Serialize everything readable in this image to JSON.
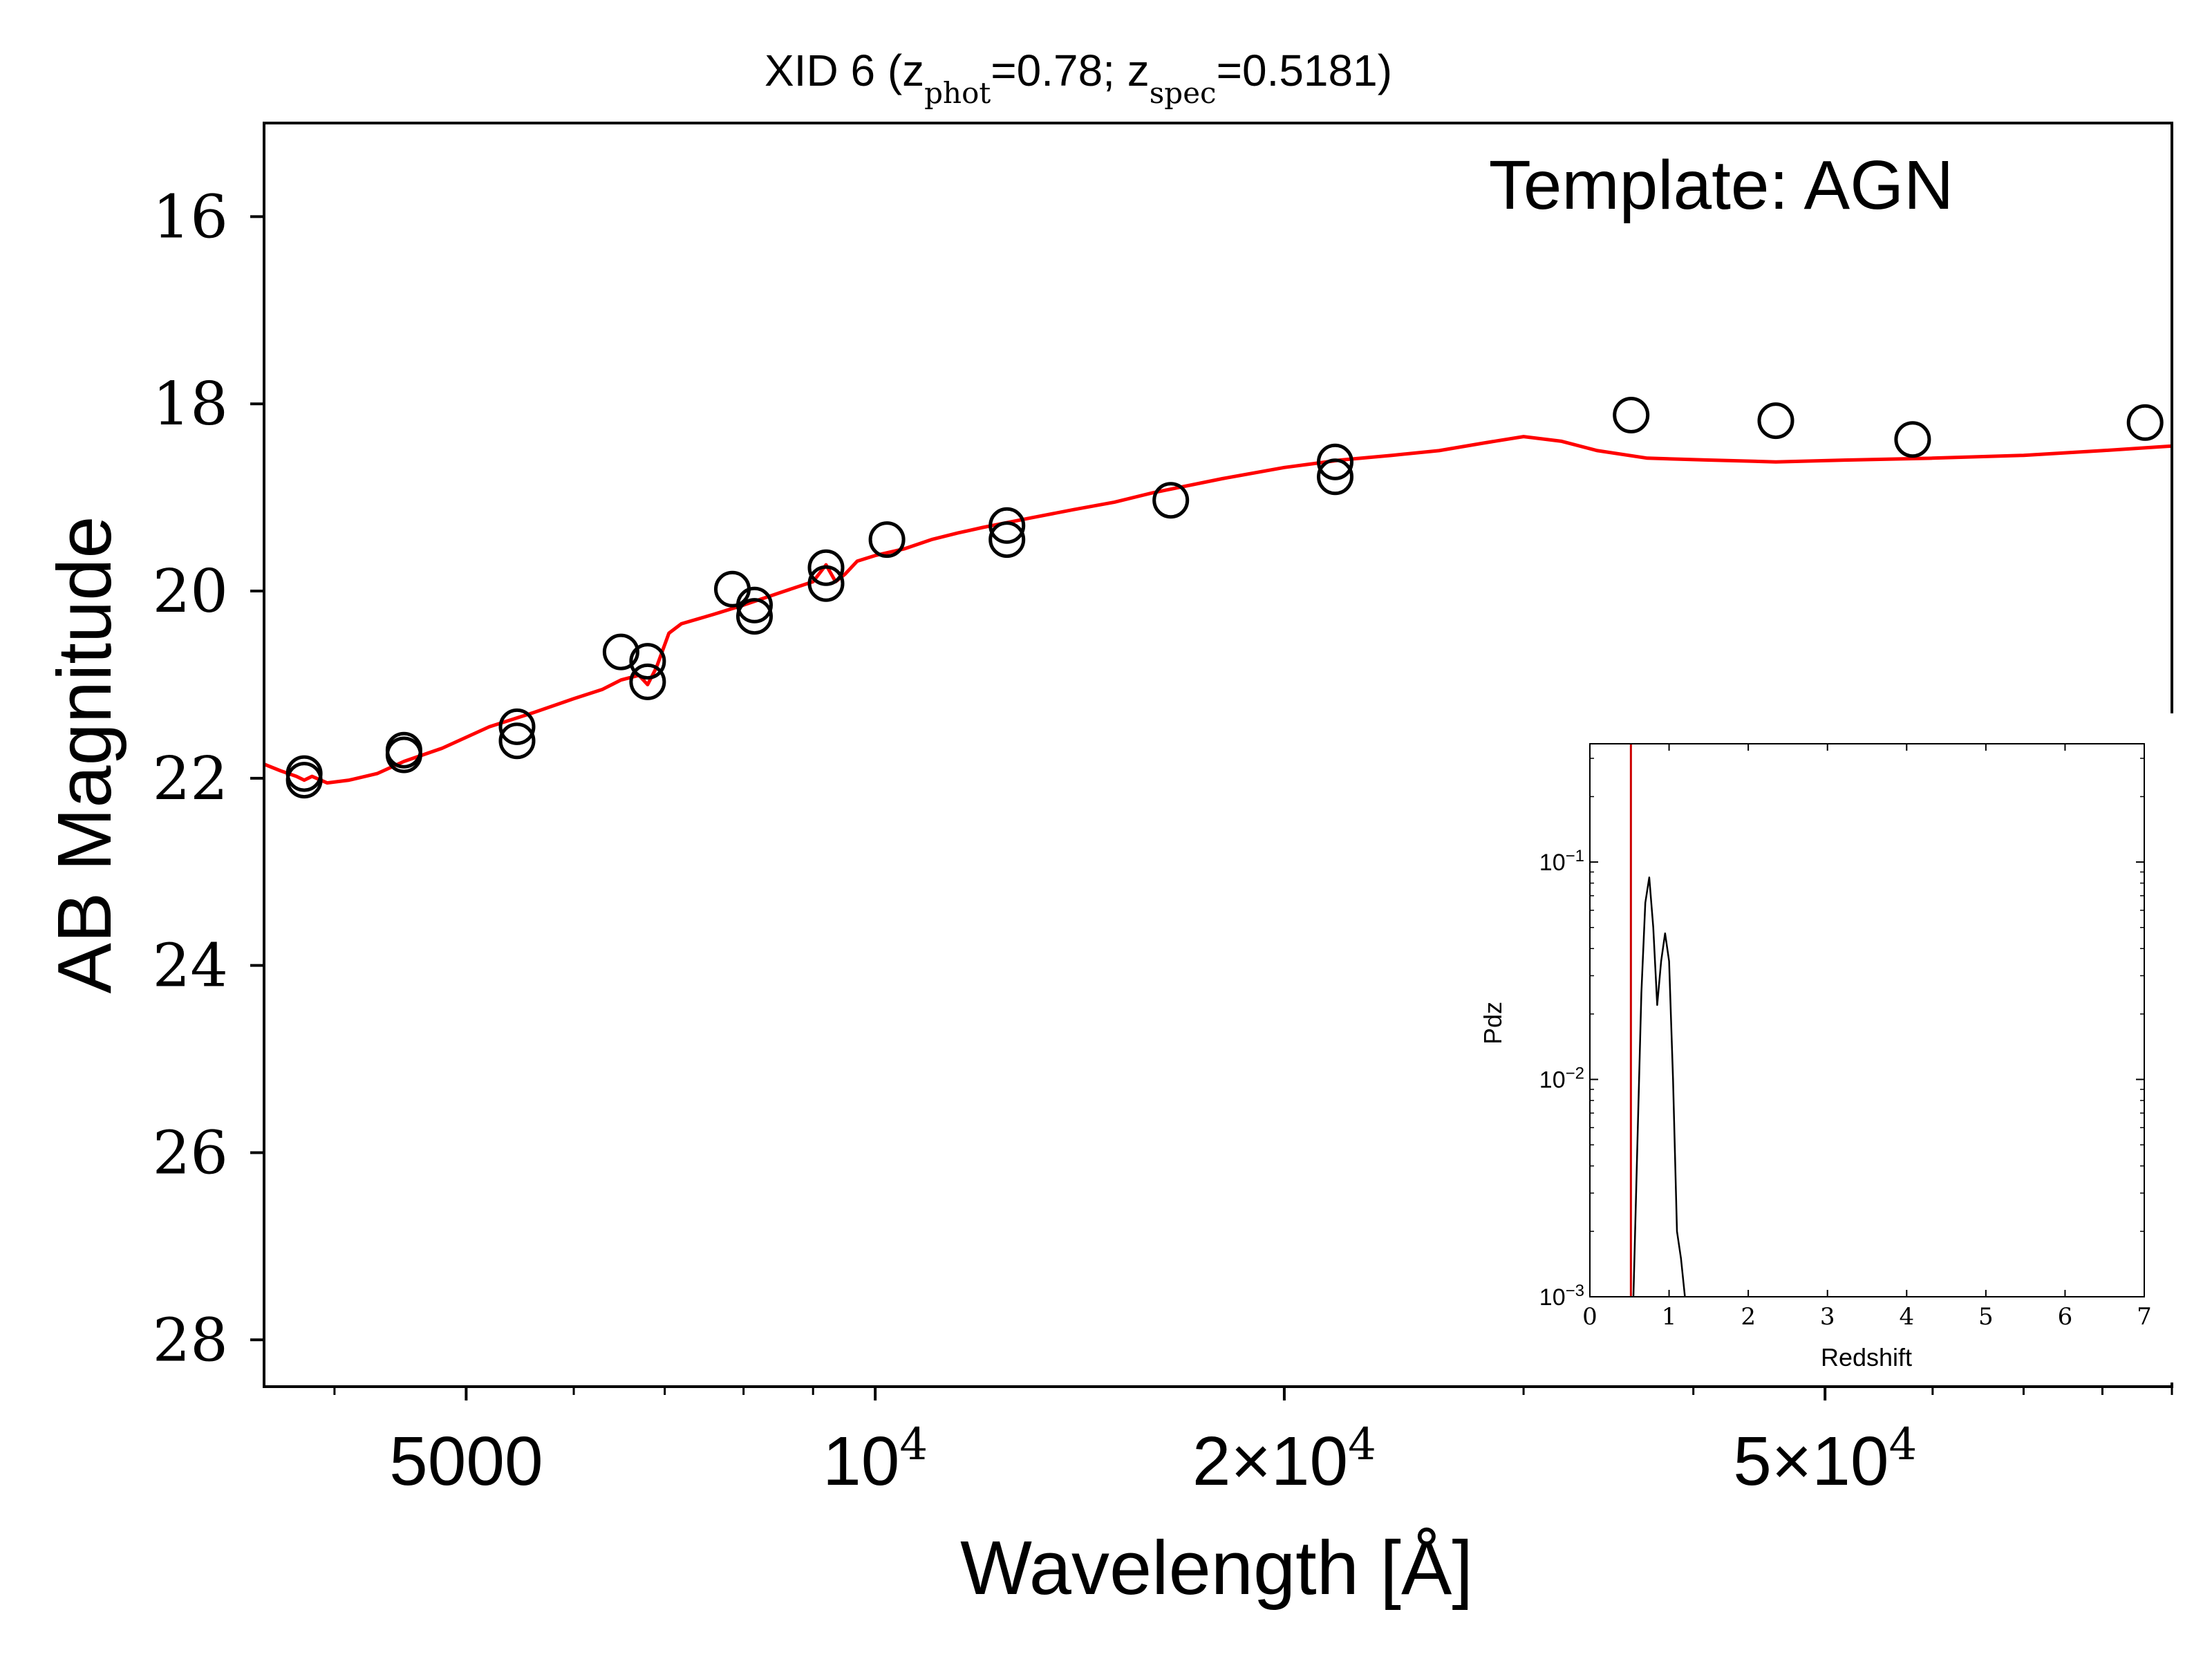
{
  "chart_data": [
    {
      "type": "scatter",
      "title_parts": [
        "XID 6 (z",
        "phot",
        "=0.78; z",
        "spec",
        "=0.5181)"
      ],
      "annotation": "Template: AGN",
      "xlabel": "Wavelength [Å]",
      "ylabel": "AB Magnitude",
      "xscale": "log",
      "xlim": [
        3550,
        90000
      ],
      "ylim": [
        28.5,
        15.0
      ],
      "y_inverted": true,
      "yticks": [
        16,
        18,
        20,
        22,
        24,
        26,
        28
      ],
      "ytick_labels": [
        "16",
        "18",
        "20",
        "22",
        "24",
        "26",
        "28"
      ],
      "xticks": [
        5000,
        10000,
        20000,
        50000
      ],
      "xtick_labels": [
        {
          "base": "5000",
          "sup": ""
        },
        {
          "base": "10",
          "sup": "4"
        },
        {
          "base": "2×10",
          "sup": "4"
        },
        {
          "base": "5×10",
          "sup": "4"
        }
      ],
      "series": [
        {
          "kind": "points",
          "color": "#000000",
          "x": [
            3800,
            3800,
            4500,
            4500,
            5450,
            5450,
            6500,
            6800,
            6800,
            7850,
            8150,
            8150,
            9200,
            9200,
            10200,
            12500,
            12500,
            16500,
            21800,
            21800,
            36000,
            46000,
            58000,
            86000
          ],
          "y": [
            21.95,
            22.02,
            21.7,
            21.75,
            21.45,
            21.6,
            20.65,
            20.75,
            20.97,
            19.98,
            20.15,
            20.27,
            19.75,
            19.92,
            19.45,
            19.3,
            19.45,
            19.03,
            18.62,
            18.78,
            18.12,
            18.18,
            18.38,
            18.2
          ]
        },
        {
          "kind": "line",
          "color": "#ff0000",
          "x": [
            3550,
            3650,
            3750,
            3800,
            3850,
            3950,
            4100,
            4300,
            4500,
            4800,
            5200,
            5600,
            6000,
            6300,
            6500,
            6700,
            6800,
            6900,
            7050,
            7200,
            7600,
            8000,
            8500,
            9000,
            9200,
            9350,
            9500,
            9700,
            10000,
            10500,
            11000,
            11500,
            12000,
            13000,
            14000,
            15000,
            16000,
            18000,
            20000,
            22000,
            24000,
            26000,
            28000,
            30000,
            32000,
            34000,
            37000,
            41000,
            46000,
            52000,
            60000,
            70000,
            80000,
            90000
          ],
          "y": [
            21.85,
            21.92,
            21.98,
            22.02,
            21.98,
            22.05,
            22.02,
            21.95,
            21.82,
            21.68,
            21.45,
            21.3,
            21.15,
            21.05,
            20.95,
            20.9,
            21.0,
            20.82,
            20.45,
            20.35,
            20.25,
            20.15,
            20.02,
            19.9,
            19.72,
            19.9,
            19.82,
            19.68,
            19.62,
            19.55,
            19.45,
            19.38,
            19.32,
            19.22,
            19.13,
            19.05,
            18.95,
            18.8,
            18.68,
            18.6,
            18.55,
            18.5,
            18.42,
            18.35,
            18.4,
            18.5,
            18.58,
            18.6,
            18.62,
            18.6,
            18.58,
            18.55,
            18.5,
            18.45
          ]
        }
      ]
    },
    {
      "type": "line",
      "xlabel": "Redshift",
      "ylabel": "Pdz",
      "xlim": [
        0,
        7
      ],
      "xticks": [
        0,
        1,
        2,
        3,
        4,
        5,
        6,
        7
      ],
      "xtick_labels": [
        "0",
        "1",
        "2",
        "3",
        "4",
        "5",
        "6",
        "7"
      ],
      "yscale": "log",
      "ylim": [
        0.001,
        0.35
      ],
      "yticks": [
        0.001,
        0.01,
        0.1
      ],
      "ytick_labels": [
        {
          "base": "10",
          "sup": "−3"
        },
        {
          "base": "10",
          "sup": "−2"
        },
        {
          "base": "10",
          "sup": "−1"
        }
      ],
      "vline_x": 0.5181,
      "vline_color": "#cc0000",
      "series": [
        {
          "color": "#000000",
          "x": [
            0.55,
            0.6,
            0.65,
            0.7,
            0.75,
            0.8,
            0.85,
            0.9,
            0.95,
            1.0,
            1.05,
            1.1,
            1.15,
            1.2
          ],
          "y": [
            0.001,
            0.005,
            0.025,
            0.065,
            0.085,
            0.05,
            0.022,
            0.035,
            0.047,
            0.035,
            0.01,
            0.002,
            0.0015,
            0.001
          ]
        }
      ]
    }
  ]
}
